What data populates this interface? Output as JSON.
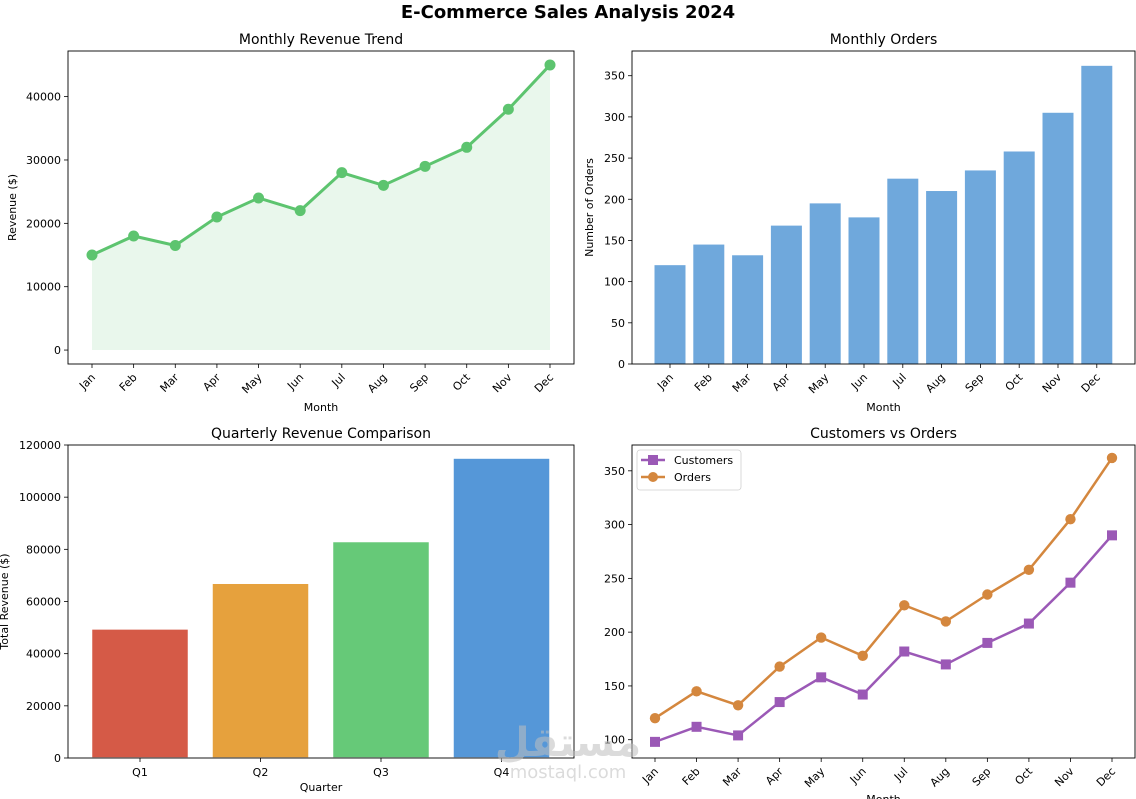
{
  "title": "E-Commerce Sales Analysis 2024",
  "watermark": {
    "arabic": "مستقل",
    "latin": "mostaql.com"
  },
  "colors": {
    "revenue_line": "#5dc46f",
    "revenue_fill": "#e9f7ec",
    "orders_bar": "#6fa8dc",
    "q1": "#d55a47",
    "q2": "#e6a13d",
    "q3": "#66c978",
    "q4": "#5597d8",
    "customers": "#9b59b6",
    "orders_line": "#d4873e"
  },
  "chart_data": [
    {
      "id": "revenue",
      "type": "area",
      "title": "Monthly Revenue Trend",
      "xlabel": "Month",
      "ylabel": "Revenue ($)",
      "categories": [
        "Jan",
        "Feb",
        "Mar",
        "Apr",
        "May",
        "Jun",
        "Jul",
        "Aug",
        "Sep",
        "Oct",
        "Nov",
        "Dec"
      ],
      "values": [
        15000,
        18000,
        16500,
        21000,
        24000,
        22000,
        28000,
        26000,
        29000,
        32000,
        38000,
        45000
      ],
      "ylim": [
        -2200,
        47200
      ],
      "yticks": [
        0,
        10000,
        20000,
        30000,
        40000
      ]
    },
    {
      "id": "orders",
      "type": "bar",
      "title": "Monthly Orders",
      "xlabel": "Month",
      "ylabel": "Number of Orders",
      "categories": [
        "Jan",
        "Feb",
        "Mar",
        "Apr",
        "May",
        "Jun",
        "Jul",
        "Aug",
        "Sep",
        "Oct",
        "Nov",
        "Dec"
      ],
      "values": [
        120,
        145,
        132,
        168,
        195,
        178,
        225,
        210,
        235,
        258,
        305,
        362
      ],
      "ylim": [
        0,
        380
      ],
      "yticks": [
        0,
        50,
        100,
        150,
        200,
        250,
        300,
        350
      ]
    },
    {
      "id": "quarterly",
      "type": "bar",
      "title": "Quarterly Revenue Comparison",
      "xlabel": "Quarter",
      "ylabel": "Total Revenue ($)",
      "categories": [
        "Q1",
        "Q2",
        "Q3",
        "Q4"
      ],
      "values": [
        49500,
        67000,
        83000,
        115000
      ],
      "ylim": [
        0,
        120000
      ],
      "yticks": [
        0,
        20000,
        40000,
        60000,
        80000,
        100000,
        120000
      ]
    },
    {
      "id": "custorders",
      "type": "line",
      "title": "Customers vs Orders",
      "xlabel": "Month",
      "ylabel": "",
      "categories": [
        "Jan",
        "Feb",
        "Mar",
        "Apr",
        "May",
        "Jun",
        "Jul",
        "Aug",
        "Sep",
        "Oct",
        "Nov",
        "Dec"
      ],
      "series": [
        {
          "name": "Customers",
          "marker": "square",
          "values": [
            98,
            112,
            104,
            135,
            158,
            142,
            182,
            170,
            190,
            208,
            246,
            290
          ]
        },
        {
          "name": "Orders",
          "marker": "circle",
          "values": [
            120,
            145,
            132,
            168,
            195,
            178,
            225,
            210,
            235,
            258,
            305,
            362
          ]
        }
      ],
      "ylim": [
        83,
        374
      ],
      "yticks": [
        100,
        150,
        200,
        250,
        300,
        350
      ],
      "legend": "top-left"
    }
  ]
}
